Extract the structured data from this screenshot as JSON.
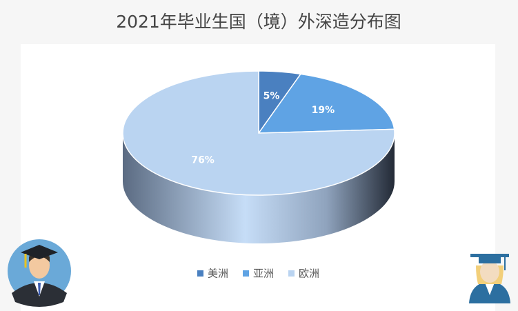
{
  "chart_data": {
    "type": "pie3d",
    "title": "2021年毕业生国（境）外深造分布图",
    "categories": [
      "美洲",
      "亚洲",
      "欧洲"
    ],
    "values": [
      5,
      19,
      76
    ],
    "value_labels": [
      "5%",
      "19%",
      "76%"
    ],
    "colors": [
      "#4a80c0",
      "#5fa3e4",
      "#bad4f1"
    ],
    "legend": "bottom"
  }
}
